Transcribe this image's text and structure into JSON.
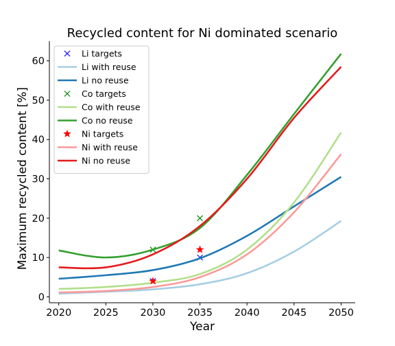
{
  "chart_data": {
    "type": "line",
    "title": "Recycled content for Ni dominated scenario",
    "xlabel": "Year",
    "ylabel": "Maximum recycled content [%]",
    "xlim": [
      2019,
      2051.5
    ],
    "ylim": [
      -1.5,
      65
    ],
    "xticks": [
      2020,
      2025,
      2030,
      2035,
      2040,
      2045,
      2050
    ],
    "yticks": [
      0,
      10,
      20,
      30,
      40,
      50,
      60
    ],
    "grid": false,
    "legend_position": "top-left",
    "series": [
      {
        "name": "Li targets",
        "kind": "marker",
        "marker": "x",
        "color": "#0000ff",
        "x": [
          2030,
          2035
        ],
        "y": [
          4,
          10
        ]
      },
      {
        "name": "Li with reuse",
        "kind": "line",
        "color": "#a6cee3",
        "x": [
          2020,
          2025,
          2030,
          2035,
          2040,
          2045,
          2050
        ],
        "y": [
          0.8,
          1.3,
          1.9,
          3.2,
          6.0,
          11.5,
          19.3
        ]
      },
      {
        "name": "Li no reuse",
        "kind": "line",
        "color": "#1f78b4",
        "x": [
          2020,
          2025,
          2030,
          2035,
          2040,
          2045,
          2050
        ],
        "y": [
          4.6,
          5.5,
          6.8,
          9.8,
          15.5,
          23.0,
          30.5
        ]
      },
      {
        "name": "Co targets",
        "kind": "marker",
        "marker": "x",
        "color": "#008000",
        "x": [
          2030,
          2035
        ],
        "y": [
          12,
          20
        ]
      },
      {
        "name": "Co with reuse",
        "kind": "line",
        "color": "#b2df8a",
        "x": [
          2020,
          2025,
          2030,
          2035,
          2040,
          2045,
          2050
        ],
        "y": [
          2.0,
          2.5,
          3.6,
          5.8,
          12.0,
          24.0,
          41.8
        ]
      },
      {
        "name": "Co no reuse",
        "kind": "line",
        "color": "#33a02c",
        "x": [
          2020,
          2025,
          2030,
          2035,
          2040,
          2045,
          2050
        ],
        "y": [
          11.8,
          10.0,
          12.0,
          17.5,
          31.0,
          46.5,
          61.8
        ]
      },
      {
        "name": "Ni targets",
        "kind": "marker",
        "marker": "*",
        "color": "#ff0000",
        "x": [
          2030,
          2035
        ],
        "y": [
          4,
          12
        ]
      },
      {
        "name": "Ni with reuse",
        "kind": "line",
        "color": "#fb9a99",
        "x": [
          2020,
          2025,
          2030,
          2035,
          2040,
          2045,
          2050
        ],
        "y": [
          1.1,
          1.5,
          2.5,
          5.0,
          10.8,
          21.5,
          36.3
        ]
      },
      {
        "name": "Ni no reuse",
        "kind": "line",
        "color": "#e31a1c",
        "x": [
          2020,
          2025,
          2030,
          2035,
          2040,
          2045,
          2050
        ],
        "y": [
          7.5,
          7.5,
          10.8,
          18.0,
          30.0,
          45.5,
          58.5
        ]
      }
    ]
  }
}
